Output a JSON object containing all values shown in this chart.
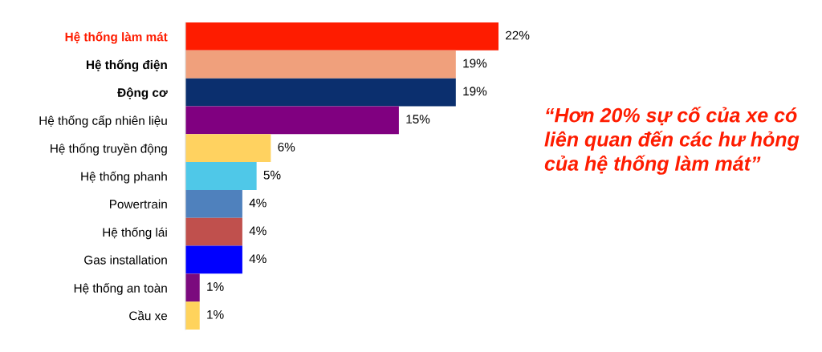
{
  "chart_data": {
    "type": "bar",
    "orientation": "horizontal",
    "tick_labels": "y",
    "categories": [
      "Hệ thống làm mát",
      "Hệ thống điện",
      "Động cơ",
      "Hệ thống cấp nhiên liệu",
      "Hệ thống truyền động",
      "Hệ thống phanh",
      "Powertrain",
      "Hệ thống lái",
      "Gas installation",
      "Hệ thống an toàn",
      "Cầu xe"
    ],
    "values": [
      22,
      19,
      19,
      15,
      6,
      5,
      4,
      4,
      4,
      1,
      1
    ],
    "colors": [
      "#fe1c00",
      "#f0a07c",
      "#0b2f6e",
      "#800080",
      "#ffd260",
      "#4fc8e8",
      "#4f81bd",
      "#c0504d",
      "#0000ff",
      "#7b0a7e",
      "#ffd35c"
    ],
    "value_labels": [
      "22%",
      "19%",
      "19%",
      "15%",
      "6%",
      "5%",
      "4%",
      "4%",
      "4%",
      "1%",
      "1%"
    ],
    "annotations": [
      "“Hơn 20% sự cố của xe có\nliên quan đến các hư hỏng\ncủa hệ thống làm mát”"
    ]
  }
}
